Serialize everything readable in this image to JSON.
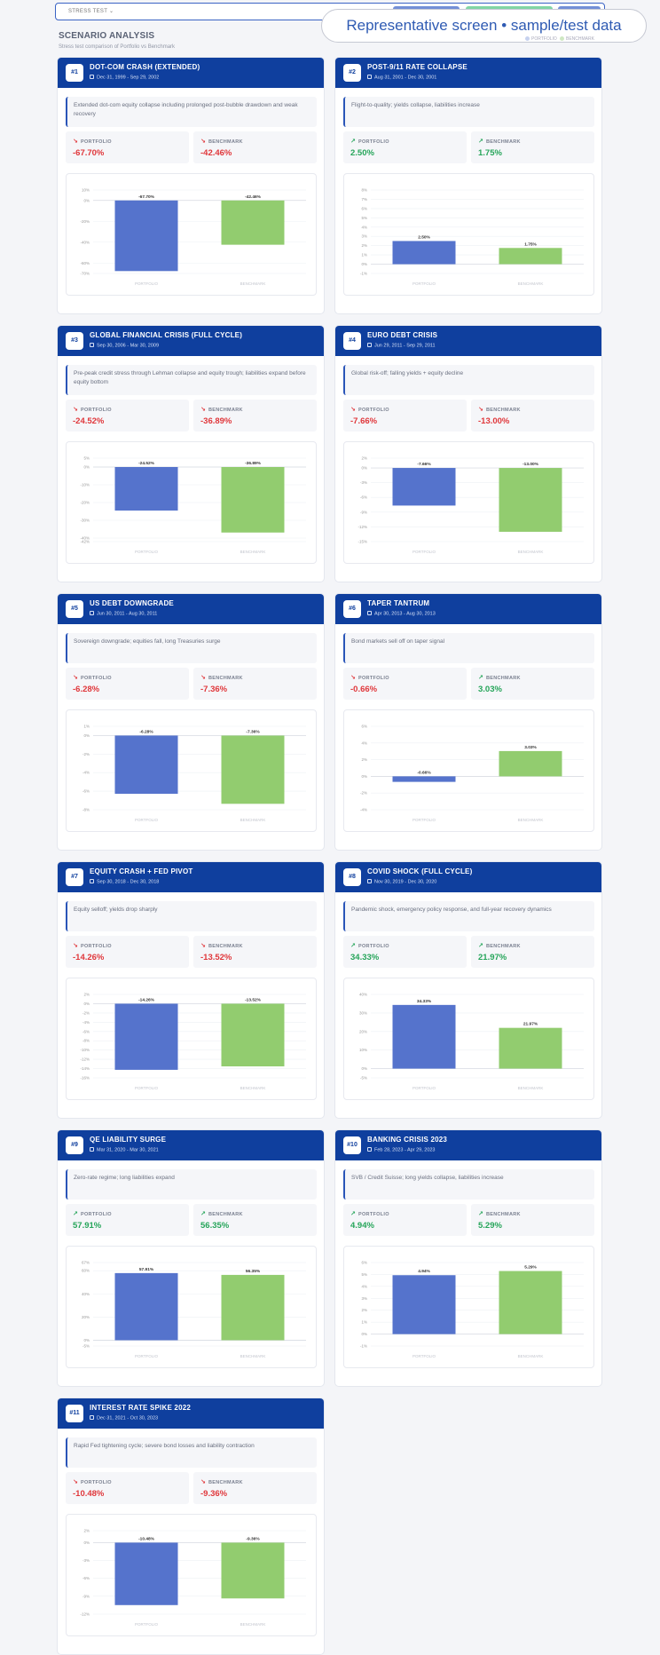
{
  "toolbar": {
    "selector_label": "STRESS TEST"
  },
  "banner": "Representative screen • sample/test data",
  "section": {
    "title": "SCENARIO ANALYSIS",
    "subtitle": "Stress test comparison of Portfolio vs Benchmark"
  },
  "labels": {
    "portfolio": "PORTFOLIO",
    "benchmark": "BENCHMARK"
  },
  "colors": {
    "header": "#0f3f9e",
    "portfolio_bar": "#5573cc",
    "benchmark_bar": "#92cc6f",
    "negative": "#e0373b",
    "positive": "#26a55a"
  },
  "scenarios": [
    {
      "num": "#1",
      "title": "DOT-COM CRASH (EXTENDED)",
      "date": "Dec 31, 1999 - Sep 29, 2002",
      "desc": "Extended dot-com equity collapse including prolonged post-bubble drawdown and weak recovery",
      "portfolio": "-67.70%",
      "benchmark": "-42.46%"
    },
    {
      "num": "#2",
      "title": "POST-9/11 RATE COLLAPSE",
      "date": "Aug 31, 2001 - Dec 30, 2001",
      "desc": "Flight-to-quality; yields collapse, liabilities increase",
      "portfolio": "2.50%",
      "benchmark": "1.75%"
    },
    {
      "num": "#3",
      "title": "GLOBAL FINANCIAL CRISIS (FULL CYCLE)",
      "date": "Sep 30, 2006 - Mar 30, 2009",
      "desc": "Pre-peak credit stress through Lehman collapse and equity trough; liabilities expand before equity bottom",
      "portfolio": "-24.52%",
      "benchmark": "-36.89%"
    },
    {
      "num": "#4",
      "title": "EURO DEBT CRISIS",
      "date": "Jun 29, 2011 - Sep 29, 2011",
      "desc": "Global risk-off; falling yields + equity decline",
      "portfolio": "-7.66%",
      "benchmark": "-13.00%"
    },
    {
      "num": "#5",
      "title": "US DEBT DOWNGRADE",
      "date": "Jun 30, 2011 - Aug 30, 2011",
      "desc": "Sovereign downgrade; equities fall, long Treasuries surge",
      "portfolio": "-6.28%",
      "benchmark": "-7.36%"
    },
    {
      "num": "#6",
      "title": "TAPER TANTRUM",
      "date": "Apr 30, 2013 - Aug 30, 2013",
      "desc": "Bond markets sell off on taper signal",
      "portfolio": "-0.66%",
      "benchmark": "3.03%"
    },
    {
      "num": "#7",
      "title": "EQUITY CRASH + FED PIVOT",
      "date": "Sep 30, 2018 - Dec 30, 2018",
      "desc": "Equity selloff; yields drop sharply",
      "portfolio": "-14.26%",
      "benchmark": "-13.52%"
    },
    {
      "num": "#8",
      "title": "COVID SHOCK (FULL CYCLE)",
      "date": "Nov 30, 2019 - Dec 30, 2020",
      "desc": "Pandemic shock, emergency policy response, and full-year recovery dynamics",
      "portfolio": "34.33%",
      "benchmark": "21.97%"
    },
    {
      "num": "#9",
      "title": "QE LIABILITY SURGE",
      "date": "Mar 31, 2020 - Mar 30, 2021",
      "desc": "Zero-rate regime; long liabilities expand",
      "portfolio": "57.91%",
      "benchmark": "56.35%"
    },
    {
      "num": "#10",
      "title": "BANKING CRISIS 2023",
      "date": "Feb 28, 2023 - Apr 29, 2023",
      "desc": "SVB / Credit Suisse; long yields collapse, liabilities increase",
      "portfolio": "4.94%",
      "benchmark": "5.29%"
    },
    {
      "num": "#11",
      "title": "INTEREST RATE SPIKE 2022",
      "date": "Dec 31, 2021 - Oct 30, 2023",
      "desc": "Rapid Fed tightening cycle; severe bond losses and liability contraction",
      "portfolio": "-10.48%",
      "benchmark": "-9.36%"
    }
  ],
  "chart_data": [
    {
      "type": "bar",
      "categories": [
        "PORTFOLIO",
        "BENCHMARK"
      ],
      "values": [
        -67.7,
        -42.46
      ],
      "ylim": [
        -70,
        10
      ],
      "yticks": [
        "10%",
        "0%",
        "-20%",
        "-40%",
        "-60%",
        "-70%"
      ],
      "data_labels": [
        "-67.70%",
        "-42.46%"
      ]
    },
    {
      "type": "bar",
      "categories": [
        "PORTFOLIO",
        "BENCHMARK"
      ],
      "values": [
        2.5,
        1.75
      ],
      "ylim": [
        -1,
        8
      ],
      "yticks": [
        "8%",
        "7%",
        "6%",
        "5%",
        "4%",
        "3%",
        "2%",
        "1%",
        "0%",
        "-1%"
      ],
      "data_labels": [
        "2.50%",
        "1.75%"
      ]
    },
    {
      "type": "bar",
      "categories": [
        "PORTFOLIO",
        "BENCHMARK"
      ],
      "values": [
        -24.52,
        -36.89
      ],
      "ylim": [
        -42,
        5
      ],
      "yticks": [
        "5%",
        "0%",
        "-10%",
        "-20%",
        "-30%",
        "-40%",
        "-42%"
      ],
      "data_labels": [
        "-24.52%",
        "-36.89%"
      ]
    },
    {
      "type": "bar",
      "categories": [
        "PORTFOLIO",
        "BENCHMARK"
      ],
      "values": [
        -7.66,
        -13.0
      ],
      "ylim": [
        -15,
        2
      ],
      "yticks": [
        "2%",
        "0%",
        "-3%",
        "-6%",
        "-9%",
        "-12%",
        "-15%"
      ],
      "data_labels": [
        "-7.66%",
        "-13.00%"
      ]
    },
    {
      "type": "bar",
      "categories": [
        "PORTFOLIO",
        "BENCHMARK"
      ],
      "values": [
        -6.28,
        -7.36
      ],
      "ylim": [
        -8,
        1
      ],
      "yticks": [
        "1%",
        "0%",
        "-2%",
        "-4%",
        "-6%",
        "-8%"
      ],
      "data_labels": [
        "-6.28%",
        "-7.36%"
      ]
    },
    {
      "type": "bar",
      "categories": [
        "PORTFOLIO",
        "BENCHMARK"
      ],
      "values": [
        -0.66,
        3.03
      ],
      "ylim": [
        -4,
        6
      ],
      "yticks": [
        "6%",
        "4%",
        "2%",
        "0%",
        "-2%",
        "-4%"
      ],
      "data_labels": [
        "-0.66%",
        "3.03%"
      ]
    },
    {
      "type": "bar",
      "categories": [
        "PORTFOLIO",
        "BENCHMARK"
      ],
      "values": [
        -14.26,
        -13.52
      ],
      "ylim": [
        -16,
        2
      ],
      "yticks": [
        "2%",
        "0%",
        "-2%",
        "-4%",
        "-6%",
        "-8%",
        "-10%",
        "-12%",
        "-14%",
        "-16%"
      ],
      "data_labels": [
        "-14.26%",
        "-13.52%"
      ]
    },
    {
      "type": "bar",
      "categories": [
        "PORTFOLIO",
        "BENCHMARK"
      ],
      "values": [
        34.33,
        21.97
      ],
      "ylim": [
        -5,
        40
      ],
      "yticks": [
        "40%",
        "30%",
        "20%",
        "10%",
        "0%",
        "-5%"
      ],
      "data_labels": [
        "34.33%",
        "21.97%"
      ]
    },
    {
      "type": "bar",
      "categories": [
        "PORTFOLIO",
        "BENCHMARK"
      ],
      "values": [
        57.91,
        56.35
      ],
      "ylim": [
        -5,
        67
      ],
      "yticks": [
        "67%",
        "60%",
        "40%",
        "20%",
        "0%",
        "-5%"
      ],
      "data_labels": [
        "57.91%",
        "56.35%"
      ]
    },
    {
      "type": "bar",
      "categories": [
        "PORTFOLIO",
        "BENCHMARK"
      ],
      "values": [
        4.94,
        5.29
      ],
      "ylim": [
        -1,
        6
      ],
      "yticks": [
        "6%",
        "5%",
        "4%",
        "3%",
        "2%",
        "1%",
        "0%",
        "-1%"
      ],
      "data_labels": [
        "4.94%",
        "5.29%"
      ]
    },
    {
      "type": "bar",
      "categories": [
        "PORTFOLIO",
        "BENCHMARK"
      ],
      "values": [
        -10.48,
        -9.36
      ],
      "ylim": [
        -12,
        2
      ],
      "yticks": [
        "2%",
        "0%",
        "-3%",
        "-6%",
        "-9%",
        "-12%"
      ],
      "data_labels": [
        "-10.48%",
        "-9.36%"
      ]
    }
  ]
}
